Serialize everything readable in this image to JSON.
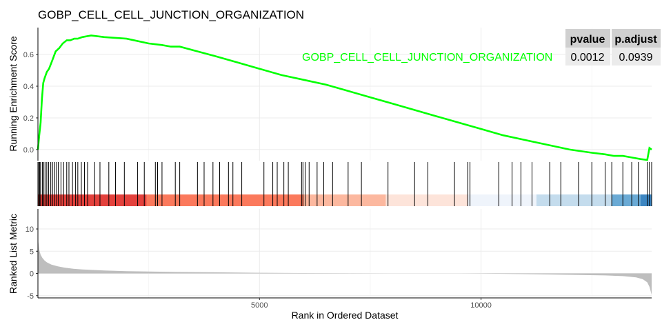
{
  "chart_data": {
    "type": "line",
    "title": "GOBP_CELL_CELL_JUNCTION_ORGANIZATION",
    "xlabel": "Rank in Ordered Dataset",
    "xlim": [
      0,
      13850
    ],
    "xticks": [
      5000,
      10000
    ],
    "enrichment": {
      "ylabel": "Running Enrichment Score",
      "ylim": [
        -0.07,
        0.77
      ],
      "yticks": [
        0.0,
        0.2,
        0.4,
        0.6
      ],
      "series": [
        {
          "name": "GOBP_CELL_CELL_JUNCTION_ORGANIZATION",
          "color": "#00ff00",
          "x": [
            0,
            30,
            60,
            90,
            120,
            150,
            200,
            250,
            320,
            400,
            480,
            560,
            650,
            730,
            820,
            900,
            1000,
            1200,
            1500,
            2000,
            2500,
            2800,
            3000,
            3200,
            3600,
            4000,
            4500,
            5000,
            5500,
            6000,
            6500,
            7000,
            7500,
            8000,
            8500,
            9000,
            9500,
            10000,
            10500,
            11000,
            11500,
            12000,
            12500,
            12800,
            13000,
            13200,
            13400,
            13600,
            13750,
            13800,
            13850
          ],
          "y": [
            0.0,
            0.09,
            0.17,
            0.32,
            0.42,
            0.45,
            0.49,
            0.51,
            0.56,
            0.62,
            0.64,
            0.67,
            0.69,
            0.69,
            0.7,
            0.7,
            0.71,
            0.72,
            0.71,
            0.7,
            0.67,
            0.66,
            0.65,
            0.65,
            0.62,
            0.59,
            0.55,
            0.51,
            0.47,
            0.44,
            0.41,
            0.37,
            0.33,
            0.29,
            0.25,
            0.21,
            0.17,
            0.13,
            0.09,
            0.06,
            0.03,
            0.0,
            -0.02,
            -0.03,
            -0.04,
            -0.04,
            -0.05,
            -0.06,
            -0.065,
            0.01,
            0.0
          ]
        }
      ],
      "table": {
        "headers": [
          "pvalue",
          "p.adjust"
        ],
        "values": [
          "0.0012",
          "0.0939"
        ]
      }
    },
    "gene_hits": [
      20,
      40,
      60,
      100,
      130,
      160,
      200,
      240,
      290,
      330,
      380,
      420,
      460,
      520,
      580,
      650,
      700,
      780,
      850,
      900,
      980,
      1050,
      1120,
      1280,
      1400,
      1600,
      1750,
      1950,
      2250,
      2400,
      2650,
      2700,
      2800,
      3100,
      3200,
      3600,
      3750,
      3950,
      4100,
      4300,
      4400,
      4600,
      5100,
      5300,
      5400,
      5550,
      5650,
      5950,
      5980,
      6030,
      6120,
      6300,
      6450,
      6650,
      7000,
      7300,
      7900,
      8500,
      8800,
      9400,
      9700,
      9750,
      10400,
      10700,
      10900,
      11150,
      11550,
      11800,
      12200,
      12500,
      12800,
      12950,
      13200,
      13400,
      13550,
      13750,
      13800,
      13850
    ],
    "rank_strip": [
      {
        "from": 0,
        "to": 2450,
        "color": "#e3413c"
      },
      {
        "from": 2450,
        "to": 6000,
        "color": "#fb795c"
      },
      {
        "from": 6000,
        "to": 7850,
        "color": "#fcb89f"
      },
      {
        "from": 7850,
        "to": 9700,
        "color": "#fde4da"
      },
      {
        "from": 9700,
        "to": 11250,
        "color": "#eff4fb"
      },
      {
        "from": 11250,
        "to": 12950,
        "color": "#c4dced"
      },
      {
        "from": 12950,
        "to": 13600,
        "color": "#6aaad5"
      },
      {
        "from": 13600,
        "to": 13850,
        "color": "#3d86c2"
      }
    ],
    "ranked_metric": {
      "ylabel": "Ranked List Metric",
      "ylim": [
        -5.5,
        14.5
      ],
      "yticks": [
        -5,
        0,
        5,
        10
      ],
      "color": "#bebebe",
      "x": [
        0,
        10,
        30,
        60,
        100,
        150,
        200,
        300,
        450,
        600,
        800,
        1000,
        1500,
        2000,
        3000,
        4000,
        5000,
        6000,
        7000,
        8000,
        8800,
        9000,
        9500,
        10000,
        11000,
        12000,
        12800,
        13200,
        13500,
        13650,
        13750,
        13800,
        13850
      ],
      "y": [
        8.2,
        7.0,
        5.3,
        4.2,
        3.5,
        2.9,
        2.5,
        2.0,
        1.6,
        1.3,
        1.05,
        0.9,
        0.65,
        0.5,
        0.35,
        0.25,
        0.15,
        0.08,
        0.03,
        0.0,
        0.0,
        0.0,
        0.0,
        -0.05,
        -0.15,
        -0.3,
        -0.45,
        -0.6,
        -0.9,
        -1.3,
        -2.0,
        -3.0,
        -4.8
      ]
    }
  }
}
